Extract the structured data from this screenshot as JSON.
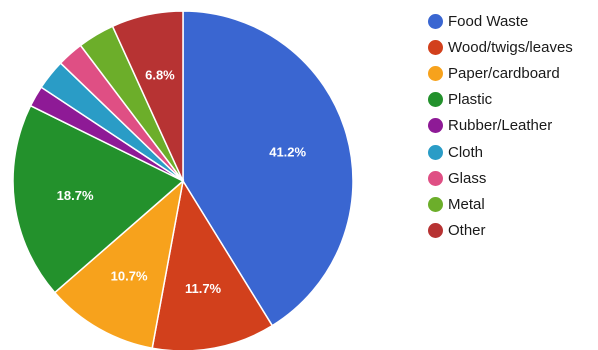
{
  "chart_data": {
    "type": "pie",
    "title": "",
    "categories": [
      "Food Waste",
      "Wood/twigs/leaves",
      "Paper/cardboard",
      "Plastic",
      "Rubber/Leather",
      "Cloth",
      "Glass",
      "Metal",
      "Other"
    ],
    "values": [
      41.2,
      11.7,
      10.7,
      18.7,
      2.0,
      2.9,
      2.5,
      3.5,
      6.8
    ],
    "data_labels": [
      "41.2%",
      "11.7%",
      "10.7%",
      "18.7%",
      "",
      "",
      "",
      "",
      "6.8%"
    ],
    "colors": [
      "#3a66d1",
      "#d2401c",
      "#f7a21c",
      "#23912c",
      "#8e1a96",
      "#2a9cc6",
      "#df4f84",
      "#6cae2a",
      "#b73333"
    ],
    "legend_position": "right"
  }
}
